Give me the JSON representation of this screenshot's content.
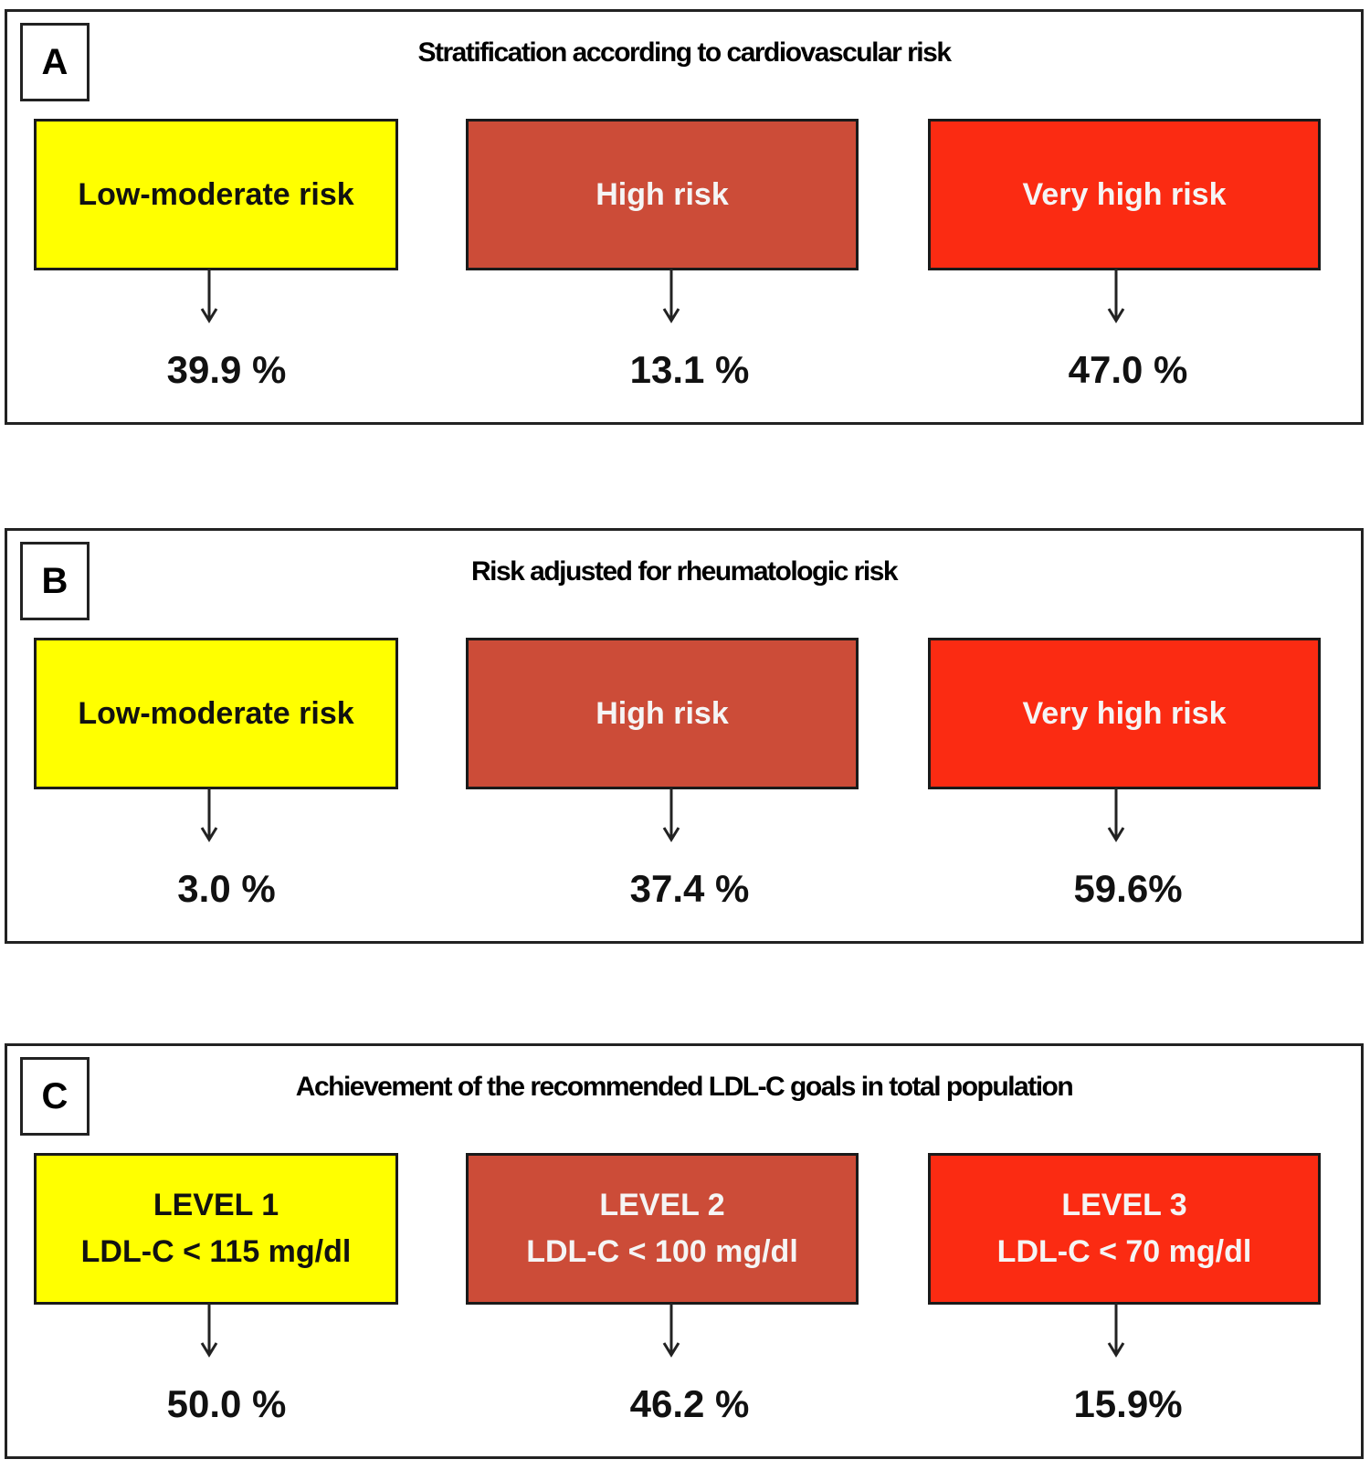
{
  "colors": {
    "low": "#ffff00",
    "high": "#cc4c38",
    "very_high": "#fb2b12"
  },
  "panels": [
    {
      "letter": "A",
      "title": "Stratification according to cardiovascular risk",
      "boxes": [
        {
          "line1": "Low-moderate risk",
          "line2": "",
          "value": "39.9 %"
        },
        {
          "line1": "High risk",
          "line2": "",
          "value": "13.1 %"
        },
        {
          "line1": "Very high risk",
          "line2": "",
          "value": "47.0 %"
        }
      ]
    },
    {
      "letter": "B",
      "title": "Risk adjusted for rheumatologic risk",
      "boxes": [
        {
          "line1": "Low-moderate risk",
          "line2": "",
          "value": "3.0 %"
        },
        {
          "line1": "High risk",
          "line2": "",
          "value": "37.4 %"
        },
        {
          "line1": "Very high risk",
          "line2": "",
          "value": "59.6%"
        }
      ]
    },
    {
      "letter": "C",
      "title": "Achievement of the recommended LDL-C goals  in total population",
      "boxes": [
        {
          "line1": "LEVEL 1",
          "line2": "LDL-C < 115 mg/dl",
          "value": "50.0 %"
        },
        {
          "line1": "LEVEL 2",
          "line2": "LDL-C < 100 mg/dl",
          "value": "46.2 %"
        },
        {
          "line1": "LEVEL 3",
          "line2": "LDL-C < 70 mg/dl",
          "value": "15.9%"
        }
      ]
    }
  ]
}
